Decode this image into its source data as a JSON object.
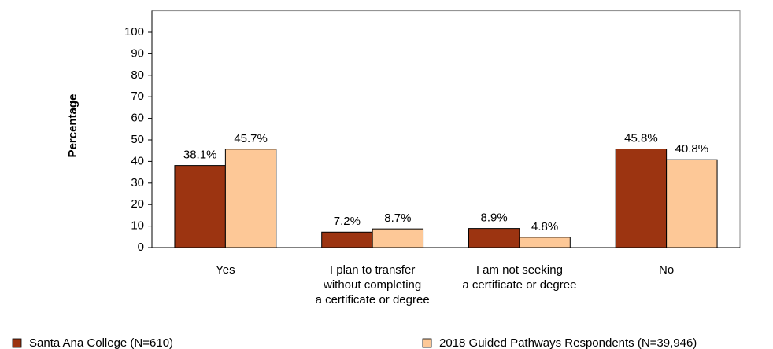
{
  "chart_data": {
    "type": "bar",
    "y_label": "Percentage",
    "categories": [
      "Yes",
      "I plan to transfer\nwithout completing\na certificate or degree",
      "I am not seeking\na certificate or degree",
      "No"
    ],
    "series": [
      {
        "name": "Santa Ana College (N=610)",
        "color": "#9c3411",
        "values": [
          38.1,
          7.2,
          8.9,
          45.8
        ],
        "value_labels": [
          "38.1%",
          "7.2%",
          "8.9%",
          "45.8%"
        ]
      },
      {
        "name": "2018 Guided Pathways Respondents (N=39,946)",
        "color": "#fdc897",
        "values": [
          45.7,
          8.7,
          4.8,
          40.8
        ],
        "value_labels": [
          "45.7%",
          "8.7%",
          "4.8%",
          "40.8%"
        ]
      }
    ],
    "ylim": [
      0,
      110
    ],
    "yticks": [
      0,
      10,
      20,
      30,
      40,
      50,
      60,
      70,
      80,
      90,
      100
    ],
    "grid": false,
    "legend": "bottom"
  }
}
